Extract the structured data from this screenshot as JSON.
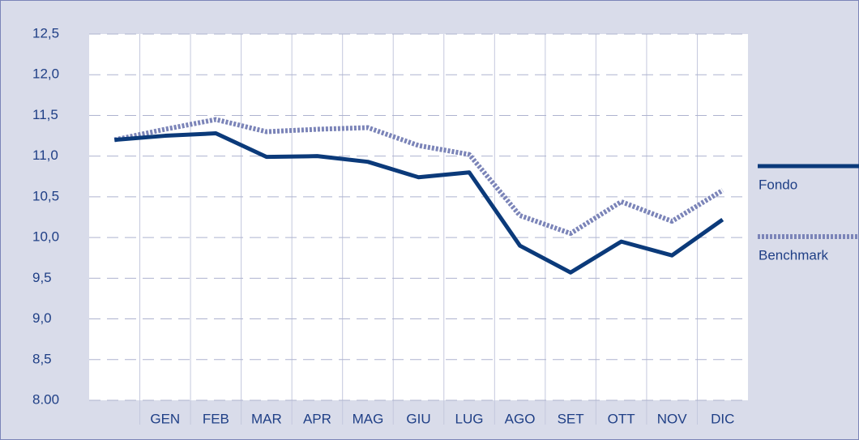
{
  "chart_data": {
    "type": "line",
    "categories": [
      null,
      "GEN",
      "FEB",
      "MAR",
      "APR",
      "MAG",
      "GIU",
      "LUG",
      "AGO",
      "SET",
      "OTT",
      "NOV",
      "DIC"
    ],
    "series": [
      {
        "name": "Fondo",
        "color": "#0b3a7a",
        "style": "solid",
        "values": [
          11.2,
          11.25,
          11.28,
          10.99,
          11.0,
          10.93,
          10.74,
          10.8,
          9.9,
          9.57,
          9.95,
          9.78,
          10.22
        ]
      },
      {
        "name": "Benchmark",
        "color": "#7b84b8",
        "style": "dotted",
        "values": [
          11.2,
          11.33,
          11.45,
          11.3,
          11.33,
          11.35,
          11.13,
          11.02,
          10.27,
          10.05,
          10.44,
          10.2,
          10.58
        ]
      }
    ],
    "ylim": [
      8,
      12.5
    ],
    "yticks": [
      {
        "value": 8,
        "label": "8.00"
      },
      {
        "value": 8.5,
        "label": "8,5"
      },
      {
        "value": 9,
        "label": "9,0"
      },
      {
        "value": 9.5,
        "label": "9,5"
      },
      {
        "value": 10,
        "label": "10,0"
      },
      {
        "value": 10.5,
        "label": "10,5"
      },
      {
        "value": 11,
        "label": "11,0"
      },
      {
        "value": 11.5,
        "label": "11,5"
      },
      {
        "value": 12,
        "label": "12,0"
      },
      {
        "value": 12.5,
        "label": "12,5"
      }
    ],
    "grid": true,
    "legend": "right"
  }
}
